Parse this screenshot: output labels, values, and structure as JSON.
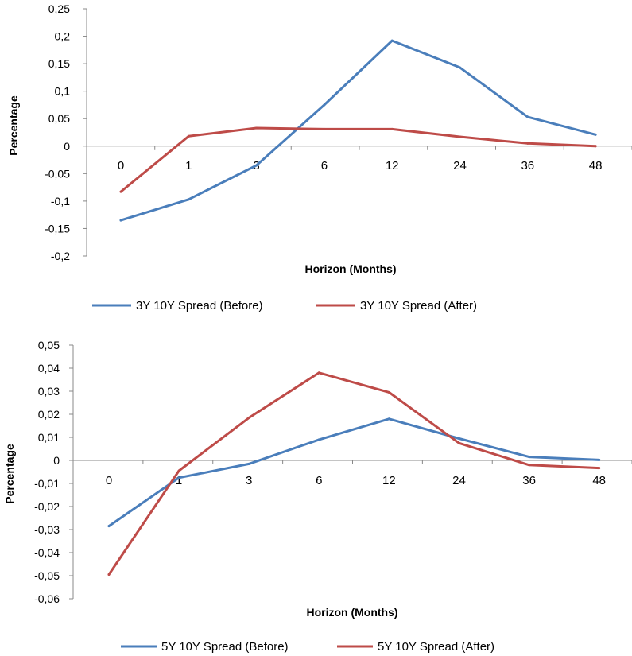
{
  "chart_data": [
    {
      "type": "line",
      "categories": [
        "0",
        "1",
        "3",
        "6",
        "12",
        "24",
        "36",
        "48"
      ],
      "series": [
        {
          "name": "3Y 10Y Spread (Before)",
          "color": "#4A7EBB",
          "values": [
            -0.135,
            -0.097,
            -0.035,
            0.075,
            0.192,
            0.143,
            0.053,
            0.021
          ]
        },
        {
          "name": "3Y 10Y Spread (After)",
          "color": "#BE4B48",
          "values": [
            -0.083,
            0.018,
            0.033,
            0.031,
            0.031,
            0.017,
            0.005,
            0.0
          ]
        }
      ],
      "xlabel": "Horizon (Months)",
      "ylabel": "Percentage",
      "ylim": [
        -0.2,
        0.25
      ],
      "yticks": [
        "0,25",
        "0,2",
        "0,15",
        "0,1",
        "0,05",
        "0",
        "-0,05",
        "-0,1",
        "-0,15",
        "-0,2"
      ],
      "legend_position": "bottom",
      "grid": false
    },
    {
      "type": "line",
      "categories": [
        "0",
        "1",
        "3",
        "6",
        "12",
        "24",
        "36",
        "48"
      ],
      "series": [
        {
          "name": "5Y 10Y Spread (Before)",
          "color": "#4A7EBB",
          "values": [
            -0.0285,
            -0.0075,
            -0.0015,
            0.009,
            0.018,
            0.0095,
            0.0015,
            0.0002
          ]
        },
        {
          "name": "5Y 10Y Spread (After)",
          "color": "#BE4B48",
          "values": [
            -0.0495,
            -0.0045,
            0.0185,
            0.038,
            0.0295,
            0.0075,
            -0.002,
            -0.0033
          ]
        }
      ],
      "xlabel": "Horizon (Months)",
      "ylabel": "Percentage",
      "ylim": [
        -0.06,
        0.05
      ],
      "yticks": [
        "0,05",
        "0,04",
        "0,03",
        "0,02",
        "0,01",
        "0",
        "-0,01",
        "-0,02",
        "-0,03",
        "-0,04",
        "-0,05",
        "-0,06"
      ],
      "legend_position": "bottom",
      "grid": false
    }
  ]
}
